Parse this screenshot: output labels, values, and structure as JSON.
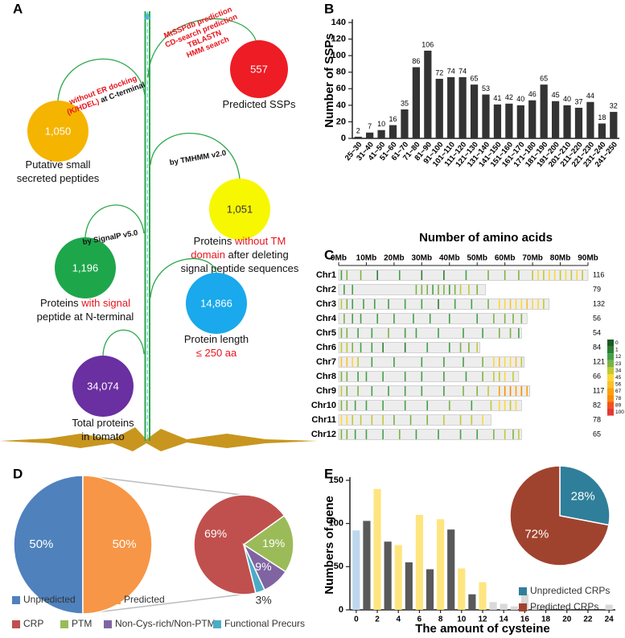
{
  "panel_labels": [
    "A",
    "B",
    "C",
    "D",
    "E"
  ],
  "diagram": {
    "nodes": [
      {
        "value": "557",
        "color": "#ee1c25",
        "text_color": "#ffffff",
        "label": [
          [
            {
              "text": "Predicted SSPs"
            }
          ]
        ],
        "annotation": [
          [
            {
              "text": "MtSSPdb prediction",
              "color": "#e8141c"
            }
          ],
          [
            {
              "text": "CD-search prediction",
              "color": "#e8141c"
            }
          ],
          [
            {
              "text": "TBLASTN",
              "color": "#e8141c"
            }
          ],
          [
            {
              "text": "HMM search",
              "color": "#e8141c"
            }
          ]
        ]
      },
      {
        "value": "1,050",
        "color": "#f5b400",
        "text_color": "#ffffff",
        "label": [
          [
            {
              "text": "Putative small"
            }
          ],
          [
            {
              "text": "secreted peptides"
            }
          ]
        ],
        "annotation": [
          [
            {
              "text": "without ER docking",
              "color": "#e8141c"
            }
          ],
          [
            {
              "text": "(K/HDEL)",
              "color": "#e8141c"
            },
            {
              "text": " at C-terminal"
            }
          ]
        ]
      },
      {
        "value": "1,051",
        "color": "#f7f700",
        "text_color": "#333333",
        "label": [
          [
            {
              "text": "Proteins "
            },
            {
              "text": "without TM",
              "color": "#e8141c"
            }
          ],
          [
            {
              "text": "domain",
              "color": "#e8141c"
            },
            {
              "text": " after deleting"
            }
          ],
          [
            {
              "text": "signal peptide sequences"
            }
          ]
        ],
        "annotation": [
          [
            {
              "text": "by TMHMM v2.0"
            }
          ]
        ]
      },
      {
        "value": "1,196",
        "color": "#1ea64b",
        "text_color": "#ffffff",
        "label": [
          [
            {
              "text": "Proteins "
            },
            {
              "text": "with signal",
              "color": "#e8141c"
            }
          ],
          [
            {
              "text": "peptide at N-terminal"
            }
          ]
        ],
        "annotation": [
          [
            {
              "text": "by SignalP v5.0"
            }
          ]
        ]
      },
      {
        "value": "14,866",
        "color": "#1aa9ec",
        "text_color": "#ffffff",
        "label": [
          [
            {
              "text": "Protein length"
            }
          ],
          [
            {
              "text": "≤ 250 aa",
              "color": "#e8141c"
            }
          ]
        ]
      },
      {
        "value": "34,074",
        "color": "#6a2fa0",
        "text_color": "#ffffff",
        "label": [
          [
            {
              "text": "Total proteins"
            }
          ],
          [
            {
              "text": "in tomato"
            }
          ]
        ]
      }
    ]
  },
  "chart_data": [
    {
      "type": "bar",
      "ylabel": "Number of SSPs",
      "xlabel": "Number of amino acids",
      "color": "#333333",
      "data_labels": true,
      "categories": [
        "25~30",
        "31~40",
        "41~50",
        "51~60",
        "61~70",
        "71~80",
        "81~90",
        "91~100",
        "101~110",
        "111~120",
        "121~130",
        "131~140",
        "141~150",
        "151~160",
        "161~170",
        "171~180",
        "181~190",
        "191~200",
        "201~210",
        "211~220",
        "221~230",
        "231~240",
        "241~250"
      ],
      "values": [
        2,
        7,
        10,
        16,
        35,
        86,
        106,
        72,
        74,
        74,
        65,
        53,
        41,
        42,
        40,
        46,
        65,
        45,
        40,
        37,
        44,
        18,
        32
      ],
      "ylim": [
        0,
        140
      ],
      "yticks": [
        0,
        20,
        40,
        60,
        80,
        100,
        120,
        140
      ]
    },
    {
      "type": "chromosome-map",
      "xlim": [
        0,
        90
      ],
      "xticks": [
        {
          "value": 0,
          "label": "0Mb"
        },
        {
          "value": 10,
          "label": "10Mb"
        },
        {
          "value": 20,
          "label": "20Mb"
        },
        {
          "value": 30,
          "label": "30Mb"
        },
        {
          "value": 40,
          "label": "40Mb"
        },
        {
          "value": 50,
          "label": "50Mb"
        },
        {
          "value": 60,
          "label": "60Mb"
        },
        {
          "value": 70,
          "label": "70Mb"
        },
        {
          "value": 80,
          "label": "80Mb"
        },
        {
          "value": 90,
          "label": "90Mb"
        }
      ],
      "colorscale": {
        "ticks": [
          0,
          1,
          12,
          23,
          34,
          45,
          56,
          67,
          78,
          89,
          100
        ],
        "colors": [
          "#1b5e20",
          "#2e7d32",
          "#43a047",
          "#7cb342",
          "#c0ca33",
          "#fdd835",
          "#fbc02d",
          "#ffa000",
          "#fb8c00",
          "#f4511e",
          "#e53935"
        ]
      },
      "chromosomes": [
        {
          "name": "Chr1",
          "length": 90,
          "count": 116,
          "stripes": [
            1,
            3,
            8,
            14,
            22,
            30,
            38,
            46,
            54,
            60,
            65,
            70,
            72,
            74,
            76,
            78,
            80,
            82,
            84,
            86,
            88
          ],
          "levels": [
            12,
            23,
            23,
            1,
            12,
            1,
            1,
            12,
            23,
            23,
            23,
            34,
            45,
            34,
            45,
            45,
            34,
            45,
            34,
            45,
            34
          ]
        },
        {
          "name": "Chr2",
          "length": 53,
          "count": 79,
          "stripes": [
            2,
            5,
            28,
            30,
            32,
            34,
            36,
            38,
            40,
            42,
            44,
            47,
            50
          ],
          "levels": [
            12,
            12,
            23,
            23,
            23,
            12,
            23,
            23,
            12,
            23,
            34,
            34,
            23
          ]
        },
        {
          "name": "Chr3",
          "length": 76,
          "count": 132,
          "stripes": [
            1,
            3,
            5,
            9,
            13,
            18,
            24,
            30,
            36,
            42,
            48,
            54,
            58,
            60,
            62,
            64,
            66,
            68,
            70,
            72,
            74
          ],
          "levels": [
            34,
            23,
            12,
            12,
            12,
            12,
            12,
            12,
            1,
            12,
            12,
            23,
            45,
            45,
            56,
            45,
            45,
            56,
            45,
            45,
            34
          ]
        },
        {
          "name": "Chr4",
          "length": 68,
          "count": 56,
          "stripes": [
            2,
            5,
            8,
            14,
            20,
            27,
            33,
            40,
            50,
            56,
            60,
            63,
            66
          ],
          "levels": [
            23,
            12,
            12,
            12,
            12,
            12,
            12,
            12,
            12,
            23,
            23,
            23,
            23
          ]
        },
        {
          "name": "Chr5",
          "length": 66,
          "count": 54,
          "stripes": [
            1,
            3,
            7,
            12,
            18,
            24,
            28,
            36,
            45,
            52,
            58,
            62,
            65
          ],
          "levels": [
            23,
            23,
            12,
            12,
            23,
            12,
            12,
            12,
            12,
            12,
            23,
            23,
            12
          ]
        },
        {
          "name": "Chr6",
          "length": 51,
          "count": 84,
          "stripes": [
            1,
            3,
            5,
            8,
            12,
            16,
            24,
            32,
            40,
            44,
            47,
            50
          ],
          "levels": [
            34,
            34,
            23,
            12,
            12,
            1,
            1,
            12,
            12,
            23,
            23,
            34
          ]
        },
        {
          "name": "Chr7",
          "length": 67,
          "count": 121,
          "stripes": [
            1,
            3,
            5,
            7,
            12,
            20,
            30,
            38,
            45,
            52,
            56,
            58,
            60,
            62,
            64,
            66
          ],
          "levels": [
            56,
            56,
            45,
            34,
            12,
            12,
            12,
            12,
            12,
            23,
            45,
            56,
            45,
            45,
            56,
            34
          ]
        },
        {
          "name": "Chr8",
          "length": 65,
          "count": 66,
          "stripes": [
            1,
            3,
            7,
            10,
            16,
            24,
            30,
            38,
            46,
            52,
            56,
            58,
            60,
            63
          ],
          "levels": [
            23,
            23,
            12,
            12,
            12,
            12,
            12,
            12,
            12,
            23,
            34,
            34,
            45,
            34
          ]
        },
        {
          "name": "Chr9",
          "length": 69,
          "count": 117,
          "stripes": [
            1,
            3,
            7,
            12,
            18,
            24,
            30,
            38,
            45,
            50,
            54,
            58,
            60,
            62,
            64,
            66,
            68
          ],
          "levels": [
            34,
            23,
            23,
            12,
            12,
            12,
            12,
            12,
            23,
            23,
            34,
            67,
            78,
            78,
            67,
            78,
            67
          ]
        },
        {
          "name": "Chr10",
          "length": 66,
          "count": 82,
          "stripes": [
            1,
            3,
            6,
            10,
            16,
            24,
            32,
            40,
            48,
            55,
            58,
            60,
            62,
            64
          ],
          "levels": [
            23,
            23,
            12,
            12,
            12,
            12,
            12,
            23,
            12,
            34,
            45,
            45,
            34,
            45
          ]
        },
        {
          "name": "Chr11",
          "length": 55,
          "count": 78,
          "stripes": [
            1,
            3,
            5,
            8,
            12,
            16,
            20,
            26,
            32,
            38,
            44,
            48,
            52
          ],
          "levels": [
            45,
            45,
            34,
            34,
            34,
            34,
            23,
            23,
            23,
            34,
            34,
            34,
            45
          ]
        },
        {
          "name": "Chr12",
          "length": 66,
          "count": 65,
          "stripes": [
            1,
            3,
            6,
            10,
            16,
            22,
            28,
            36,
            44,
            50,
            56,
            60,
            63,
            65
          ],
          "levels": [
            23,
            23,
            12,
            12,
            12,
            23,
            12,
            12,
            12,
            12,
            23,
            34,
            23,
            34
          ]
        }
      ]
    },
    {
      "type": "pie",
      "categories": [
        "Unpredicted",
        "Predicted"
      ],
      "values": [
        50,
        50
      ],
      "value_labels": [
        "50%",
        "50%"
      ],
      "colors": [
        "#4f81bd",
        "#f79646"
      ]
    },
    {
      "type": "pie",
      "categories": [
        "CRP",
        "PTM",
        "Non-Cys-rich/Non-PTM",
        "Functional Precurs"
      ],
      "values": [
        69,
        19,
        9,
        3
      ],
      "value_labels": [
        "69%",
        "19%",
        "9%",
        "3%"
      ],
      "colors": [
        "#c0504d",
        "#9bbb59",
        "#8064a2",
        "#4bacc6"
      ]
    },
    {
      "type": "bar",
      "ylabel": "Numbers of gene",
      "xlabel": "The amount of cysteine",
      "x": [
        0,
        1,
        2,
        3,
        4,
        5,
        6,
        7,
        8,
        9,
        10,
        11,
        12,
        13,
        14,
        15,
        16,
        17,
        18,
        19,
        20,
        21,
        22,
        23,
        24
      ],
      "values": [
        92,
        103,
        140,
        79,
        75,
        55,
        110,
        47,
        105,
        93,
        48,
        18,
        32,
        9,
        7,
        4,
        18,
        3,
        4,
        0,
        2,
        0,
        0,
        0,
        6
      ],
      "colors": [
        "#bdd7ee",
        "#595959",
        "#ffe57f",
        "#595959",
        "#ffe57f",
        "#595959",
        "#ffe57f",
        "#595959",
        "#ffe57f",
        "#595959",
        "#ffe57f",
        "#595959",
        "#ffe57f",
        "#d9d9d9",
        "#d9d9d9",
        "#d9d9d9",
        "#d9d9d9",
        "#d9d9d9",
        "#d9d9d9",
        "#d9d9d9",
        "#d9d9d9",
        "#d9d9d9",
        "#d9d9d9",
        "#d9d9d9",
        "#d9d9d9"
      ],
      "xlim": [
        -0.6,
        24.6
      ],
      "xticks": [
        0,
        2,
        4,
        6,
        8,
        10,
        12,
        14,
        16,
        18,
        20,
        22,
        24
      ],
      "ylim": [
        0,
        150
      ],
      "yticks": [
        0,
        50,
        100,
        150
      ]
    },
    {
      "type": "pie",
      "categories": [
        "Unpredicted CRPs",
        "Predicted CRPs"
      ],
      "values": [
        28,
        72
      ],
      "value_labels": [
        "28%",
        "72%"
      ],
      "colors": [
        "#2f7f9a",
        "#a0432e"
      ]
    }
  ]
}
